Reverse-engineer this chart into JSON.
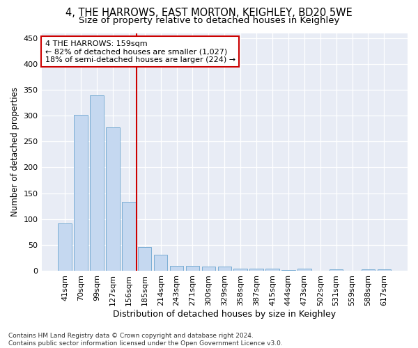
{
  "title": "4, THE HARROWS, EAST MORTON, KEIGHLEY, BD20 5WE",
  "subtitle": "Size of property relative to detached houses in Keighley",
  "xlabel": "Distribution of detached houses by size in Keighley",
  "ylabel": "Number of detached properties",
  "categories": [
    "41sqm",
    "70sqm",
    "99sqm",
    "127sqm",
    "156sqm",
    "185sqm",
    "214sqm",
    "243sqm",
    "271sqm",
    "300sqm",
    "329sqm",
    "358sqm",
    "387sqm",
    "415sqm",
    "444sqm",
    "473sqm",
    "502sqm",
    "531sqm",
    "559sqm",
    "588sqm",
    "617sqm"
  ],
  "values": [
    91,
    302,
    340,
    277,
    133,
    46,
    31,
    9,
    10,
    8,
    8,
    4,
    4,
    4,
    1,
    4,
    0,
    3,
    0,
    3,
    3
  ],
  "bar_color": "#c5d8f0",
  "bar_edge_color": "#7aadd4",
  "vline_x": 4.5,
  "annotation_line1": "4 THE HARROWS: 159sqm",
  "annotation_line2": "← 82% of detached houses are smaller (1,027)",
  "annotation_line3": "18% of semi-detached houses are larger (224) →",
  "annotation_box_color": "#ffffff",
  "annotation_box_edge": "#cc0000",
  "vline_color": "#cc0000",
  "ylim": [
    0,
    460
  ],
  "yticks": [
    0,
    50,
    100,
    150,
    200,
    250,
    300,
    350,
    400,
    450
  ],
  "bg_color": "#ffffff",
  "plot_bg_color": "#e8ecf5",
  "footer_text": "Contains HM Land Registry data © Crown copyright and database right 2024.\nContains public sector information licensed under the Open Government Licence v3.0.",
  "title_fontsize": 10.5,
  "subtitle_fontsize": 9.5,
  "xlabel_fontsize": 9,
  "ylabel_fontsize": 8.5,
  "tick_fontsize": 8,
  "annotation_fontsize": 8,
  "footer_fontsize": 6.5
}
